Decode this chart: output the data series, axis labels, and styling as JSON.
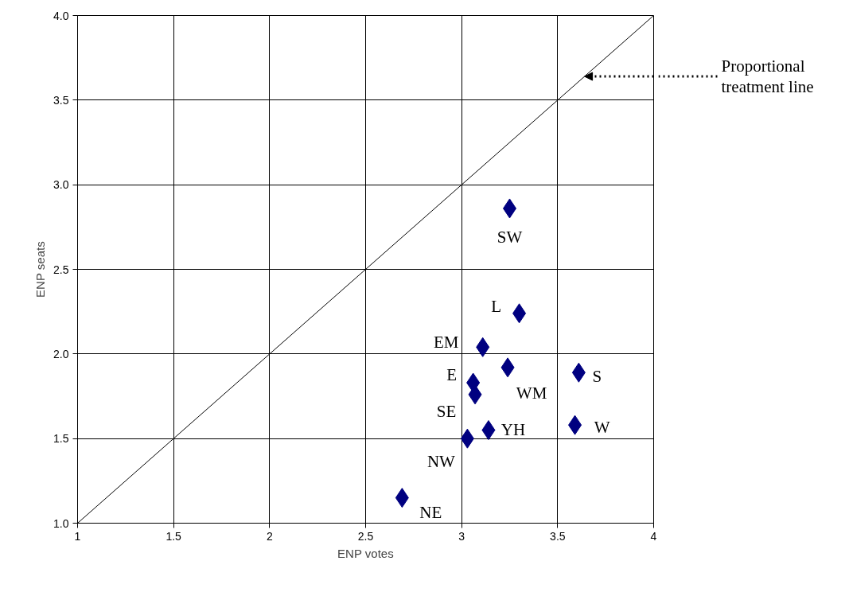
{
  "chart_data": {
    "type": "scatter",
    "xlabel": "ENP votes",
    "ylabel": "ENP seats",
    "xlim": [
      1,
      4
    ],
    "ylim": [
      1,
      4
    ],
    "xticks": [
      1,
      1.5,
      2,
      2.5,
      3,
      3.5,
      4
    ],
    "yticks": [
      {
        "value": 1,
        "label": "1.0"
      },
      {
        "value": 1.5,
        "label": "1.5"
      },
      {
        "value": 2,
        "label": "2.0"
      },
      {
        "value": 2.5,
        "label": "2.5"
      },
      {
        "value": 3,
        "label": "3.0"
      },
      {
        "value": 3.5,
        "label": "3.5"
      },
      {
        "value": 4,
        "label": "4.0"
      }
    ],
    "grid": true,
    "marker": "diamond",
    "series": [
      {
        "color": "#000080",
        "x": [
          3.25,
          3.3,
          3.11,
          3.24,
          3.61,
          3.06,
          3.07,
          3.59,
          3.14,
          3.03,
          2.69
        ],
        "values": [
          2.86,
          2.24,
          2.04,
          1.92,
          1.89,
          1.83,
          1.76,
          1.58,
          1.55,
          1.5,
          1.15
        ]
      },
      {
        "type": "line",
        "color": "#000000",
        "line_style": "solid",
        "marker": "none",
        "x": [
          1,
          4
        ],
        "values": [
          1,
          4
        ]
      }
    ],
    "annotations": [
      {
        "text": "SW",
        "x": 3.25,
        "y": 2.86
      },
      {
        "text": "L",
        "x": 3.3,
        "y": 2.24
      },
      {
        "text": "EM",
        "x": 3.11,
        "y": 2.04
      },
      {
        "text": "WM",
        "x": 3.24,
        "y": 1.92
      },
      {
        "text": "S",
        "x": 3.61,
        "y": 1.89
      },
      {
        "text": "E",
        "x": 3.06,
        "y": 1.83
      },
      {
        "text": "SE",
        "x": 3.07,
        "y": 1.76
      },
      {
        "text": "W",
        "x": 3.59,
        "y": 1.58
      },
      {
        "text": "YH",
        "x": 3.14,
        "y": 1.55
      },
      {
        "text": "NW",
        "x": 3.03,
        "y": 1.5
      },
      {
        "text": "NE",
        "x": 2.69,
        "y": 1.15
      },
      "Proportional treatment line"
    ]
  }
}
